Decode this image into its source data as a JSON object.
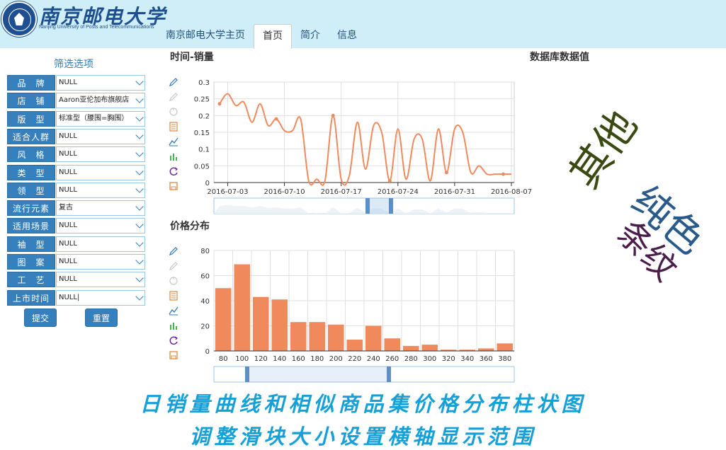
{
  "header": {
    "logo_cn": "南京邮电大学",
    "logo_en": "Nanjing University of Posts and Telecommunications",
    "nav": [
      {
        "label": "南京邮电大学主页",
        "active": false
      },
      {
        "label": "首页",
        "active": true
      },
      {
        "label": "简介",
        "active": false
      },
      {
        "label": "信息",
        "active": false
      }
    ]
  },
  "sidebar": {
    "title": "筛选选项",
    "filters": [
      {
        "label": "品　牌",
        "value": "NULL"
      },
      {
        "label": "店　铺",
        "value": "Aaron亚伦加布旗舰店"
      },
      {
        "label": "版　型",
        "value": "标准型（腰围=胸围）"
      },
      {
        "label": "适合人群",
        "value": "NULL"
      },
      {
        "label": "风　格",
        "value": "NULL"
      },
      {
        "label": "类　型",
        "value": "NULL"
      },
      {
        "label": "领　型",
        "value": "NULL"
      },
      {
        "label": "流行元素",
        "value": "复古"
      },
      {
        "label": "适用场景",
        "value": "NULL"
      },
      {
        "label": "袖　型",
        "value": "NULL"
      },
      {
        "label": "图　案",
        "value": "NULL"
      },
      {
        "label": "工　艺",
        "value": "NULL"
      },
      {
        "label": "上市时间",
        "value": "NULL|"
      }
    ],
    "submit_label": "提交",
    "reset_label": "重置"
  },
  "line_section": {
    "title": "时间-销量"
  },
  "bar_section": {
    "title": "价格分布"
  },
  "db_section": {
    "title": "数据库数据值"
  },
  "wordcloud": {
    "words": [
      {
        "text": "其他",
        "color": "#3b4a12"
      },
      {
        "text": "纯色",
        "color": "#2a5a8a"
      },
      {
        "text": "条纹",
        "color": "#4a1d4a"
      }
    ]
  },
  "captions": {
    "line1": "日销量曲线和相似商品集价格分布柱状图",
    "line2": "调整滑块大小设置横轴显示范围"
  },
  "colors": {
    "accent": "#3680bd",
    "series": "#f08a5d",
    "caption": "#15a0d8"
  },
  "toolbox_icons": [
    "pencil-icon",
    "pencil-erase-icon",
    "restore-icon",
    "data-view-icon",
    "line-chart-icon",
    "bar-chart-icon",
    "refresh-icon",
    "save-icon"
  ],
  "chart_data": [
    {
      "type": "line",
      "title": "时间-销量",
      "x_ticks": [
        "2016-07-03",
        "2016-07-10",
        "2016-07-17",
        "2016-07-24",
        "2016-07-31",
        "2016-08-07"
      ],
      "x": [
        "2016-07-02",
        "2016-07-03",
        "2016-07-04",
        "2016-07-05",
        "2016-07-06",
        "2016-07-07",
        "2016-07-08",
        "2016-07-09",
        "2016-07-10",
        "2016-07-11",
        "2016-07-12",
        "2016-07-13",
        "2016-07-14",
        "2016-07-15",
        "2016-07-16",
        "2016-07-17",
        "2016-07-18",
        "2016-07-19",
        "2016-07-20",
        "2016-07-21",
        "2016-07-22",
        "2016-07-23",
        "2016-07-24",
        "2016-07-25",
        "2016-07-26",
        "2016-07-27",
        "2016-07-28",
        "2016-07-29",
        "2016-07-30",
        "2016-07-31",
        "2016-08-01",
        "2016-08-02",
        "2016-08-03",
        "2016-08-04",
        "2016-08-05",
        "2016-08-06",
        "2016-08-07"
      ],
      "values": [
        0.235,
        0.265,
        0.23,
        0.24,
        0.18,
        0.235,
        0.17,
        0.19,
        0.155,
        0.155,
        0.19,
        0.005,
        0.01,
        0.005,
        0.2,
        0.01,
        0.02,
        0.18,
        0.04,
        0.17,
        0.15,
        0.005,
        0.16,
        0.01,
        0.13,
        0.13,
        0.005,
        0.16,
        0.03,
        0.16,
        0.15,
        0.03,
        0.05,
        0.025,
        0.025,
        0.025,
        0.025
      ],
      "symbol_indices": [
        0,
        7,
        14,
        21,
        28,
        35
      ],
      "ylim": [
        0,
        0.3
      ],
      "y_ticks": [
        0,
        0.05,
        0.1,
        0.15,
        0.2,
        0.25,
        0.3
      ],
      "grid": true,
      "series_color": "#f08a5d"
    },
    {
      "type": "bar",
      "title": "价格分布",
      "categories": [
        "80",
        "100",
        "120",
        "140",
        "160",
        "180",
        "200",
        "220",
        "240",
        "260",
        "280",
        "300",
        "320",
        "340",
        "360",
        "380"
      ],
      "values": [
        50,
        69,
        43,
        41,
        23,
        23,
        21,
        9,
        20,
        10,
        4,
        5,
        1,
        1,
        2,
        6
      ],
      "ylim": [
        0,
        80
      ],
      "y_ticks": [
        0,
        20,
        40,
        60,
        80
      ],
      "grid": true,
      "series_color": "#f08a5d"
    }
  ]
}
